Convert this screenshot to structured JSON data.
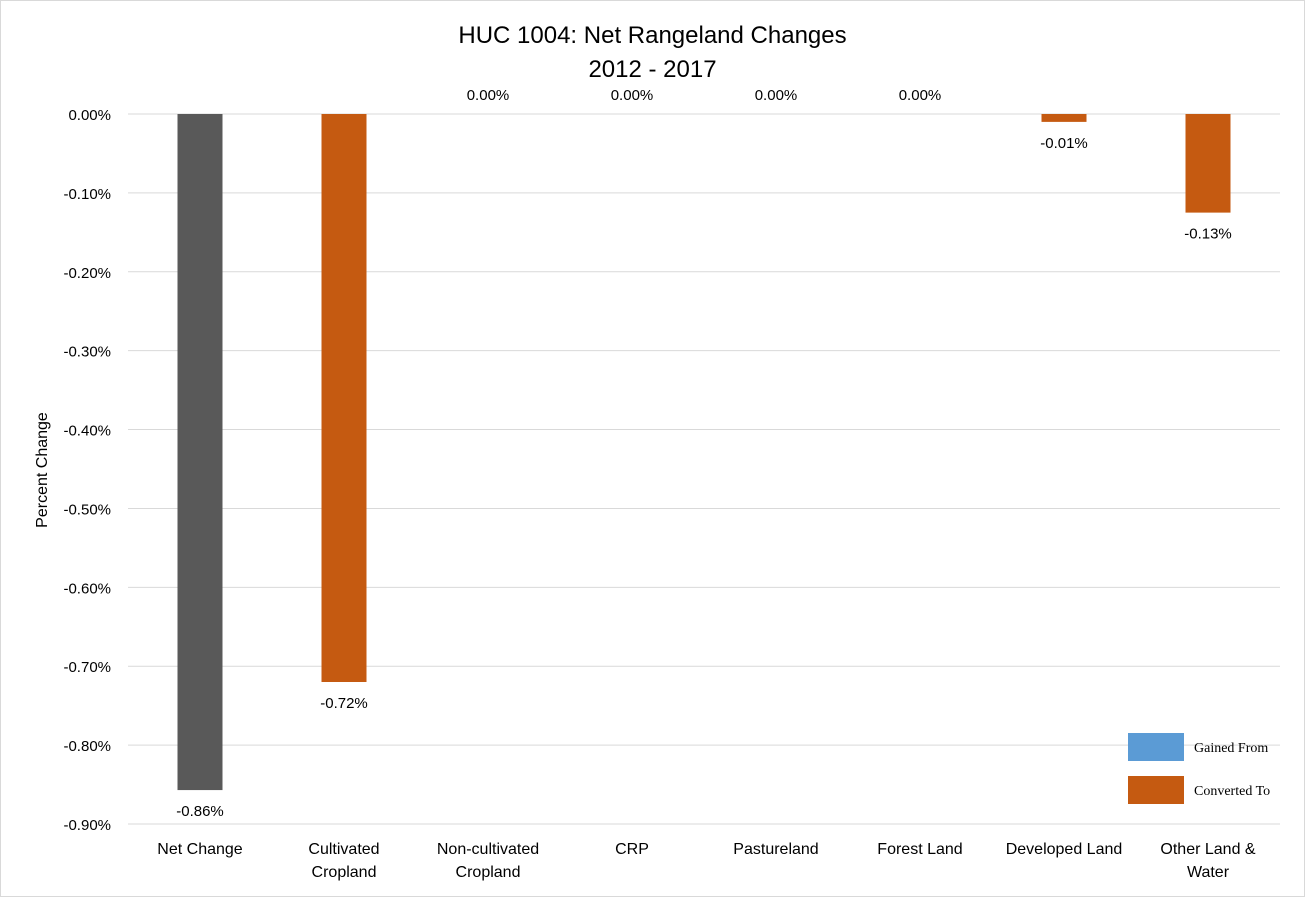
{
  "chart_data": {
    "type": "bar",
    "title": "HUC 1004: Net Rangeland Changes",
    "subtitle": "2012 - 2017",
    "ylabel": "Percent Change",
    "xlabel": "",
    "ylim": [
      -0.9,
      0.0
    ],
    "yticks": [
      0.0,
      -0.1,
      -0.2,
      -0.3,
      -0.4,
      -0.5,
      -0.6,
      -0.7,
      -0.8,
      -0.9
    ],
    "ytick_labels": [
      "0.00%",
      "-0.10%",
      "-0.20%",
      "-0.30%",
      "-0.40%",
      "-0.50%",
      "-0.60%",
      "-0.70%",
      "-0.80%",
      "-0.90%"
    ],
    "grid": true,
    "categories": [
      [
        "Net Change"
      ],
      [
        "Cultivated",
        "Cropland"
      ],
      [
        "Non-cultivated",
        "Cropland"
      ],
      [
        "CRP"
      ],
      [
        "Pastureland"
      ],
      [
        "Forest Land"
      ],
      [
        "Developed Land"
      ],
      [
        "Other Land &",
        "Water"
      ]
    ],
    "values": [
      -0.857,
      -0.72,
      0.0,
      0.0,
      0.0,
      0.0,
      -0.01,
      -0.125
    ],
    "data_labels": [
      "-0.86%",
      "-0.72%",
      "0.00%",
      "0.00%",
      "0.00%",
      "0.00%",
      "-0.01%",
      "-0.13%"
    ],
    "bar_colors": [
      "#595959",
      "#c55a11",
      "#c55a11",
      "#c55a11",
      "#c55a11",
      "#c55a11",
      "#c55a11",
      "#c55a11"
    ],
    "legend": {
      "placement": "bottom-right",
      "entries": [
        {
          "name": "Gained From",
          "color": "#5b9bd5"
        },
        {
          "name": "Converted To",
          "color": "#c55a11"
        }
      ]
    }
  }
}
